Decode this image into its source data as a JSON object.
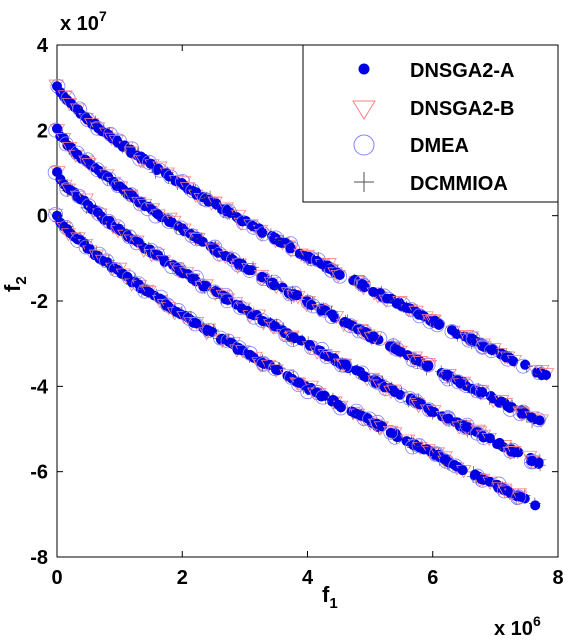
{
  "chart_data": {
    "type": "scatter",
    "xlabel": "f",
    "xlabel_sub": "1",
    "ylabel": "f",
    "ylabel_sub": "2",
    "x_exponent_label": "x 10",
    "x_exponent_power": "6",
    "y_exponent_label": "x 10",
    "y_exponent_power": "7",
    "xlim": [
      0,
      8
    ],
    "ylim": [
      -8,
      4
    ],
    "x_ticks": [
      "0",
      "2",
      "4",
      "6",
      "8"
    ],
    "y_ticks": [
      "-8",
      "-6",
      "-4",
      "-2",
      "0",
      "2",
      "4"
    ],
    "grid": false,
    "legend_position": "top-right",
    "series": [
      {
        "name": "DNSGA2-A",
        "marker": "filled-circle",
        "color": "#0000e6",
        "fronts": [
          {
            "offset": 3.0,
            "x": [
              0.0,
              0.5,
              1.0,
              1.5,
              2.0,
              2.5,
              3.0,
              3.5,
              4.0,
              4.5,
              5.0,
              5.5,
              6.0,
              6.5,
              7.0,
              7.5,
              7.9
            ],
            "y": [
              3.0,
              2.45,
              1.95,
              1.5,
              1.08,
              0.68,
              0.3,
              -0.05,
              -0.4,
              -0.73,
              -1.05,
              -1.36,
              -1.66,
              -1.95,
              -2.23,
              -2.5,
              -4.05
            ]
          },
          {
            "offset": 2.0,
            "x": [
              0.0,
              0.5,
              1.0,
              1.5,
              2.0,
              2.5,
              3.0,
              3.5,
              4.0,
              4.5,
              5.0,
              5.5,
              6.0,
              6.5,
              7.0,
              7.5,
              7.9
            ],
            "y": [
              2.0,
              1.45,
              0.95,
              0.5,
              0.08,
              -0.32,
              -0.7,
              -1.05,
              -1.4,
              -1.73,
              -2.05,
              -2.36,
              -2.66,
              -2.95,
              -3.23,
              -3.5,
              -4.85
            ]
          },
          {
            "offset": 1.0,
            "x": [
              0.0,
              0.5,
              1.0,
              1.5,
              2.0,
              2.5,
              3.0,
              3.5,
              4.0,
              4.5,
              5.0,
              5.5,
              6.0,
              6.5,
              7.0,
              7.5,
              7.9
            ],
            "y": [
              1.0,
              0.45,
              -0.05,
              -0.5,
              -0.92,
              -1.32,
              -1.7,
              -2.05,
              -2.4,
              -2.73,
              -3.05,
              -3.36,
              -3.66,
              -3.95,
              -4.23,
              -4.5,
              -5.65
            ]
          },
          {
            "offset": 0.0,
            "x": [
              0.0,
              0.5,
              1.0,
              1.5,
              2.0,
              2.5,
              3.0,
              3.5,
              4.0,
              4.5,
              5.0,
              5.5,
              6.0,
              6.5,
              7.0,
              7.5,
              7.7
            ],
            "y": [
              0.0,
              -0.55,
              -1.05,
              -1.5,
              -1.92,
              -2.32,
              -2.7,
              -3.05,
              -3.4,
              -3.73,
              -4.05,
              -4.36,
              -4.66,
              -4.95,
              -5.23,
              -5.5,
              -6.4
            ]
          }
        ]
      },
      {
        "name": "DNSGA2-B",
        "marker": "triangle-down",
        "color": "#ff8080"
      },
      {
        "name": "DMEA",
        "marker": "open-circle",
        "color": "#8080ff"
      },
      {
        "name": "DCMMIOA",
        "marker": "plus",
        "color": "#505050"
      }
    ]
  }
}
